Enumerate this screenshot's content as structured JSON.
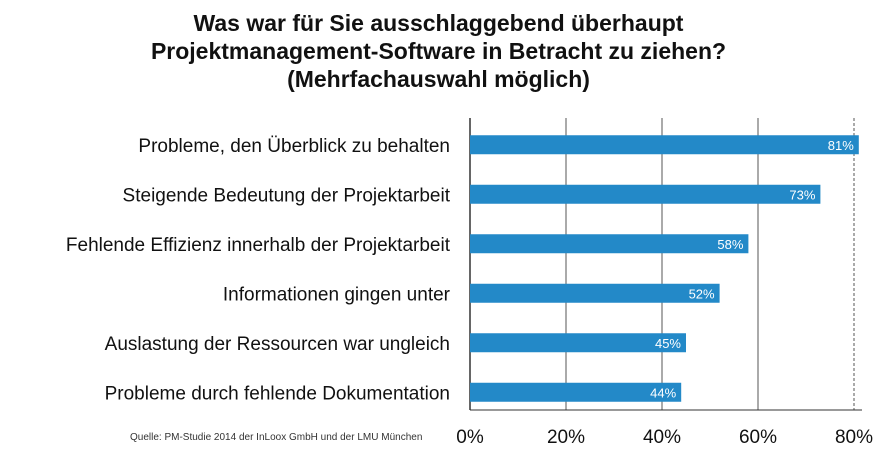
{
  "chart_data": {
    "type": "bar",
    "orientation": "horizontal",
    "title_lines": [
      "Was war für Sie ausschlaggebend überhaupt",
      "Projektmanagement-Software in Betracht zu ziehen?",
      "(Mehrfachauswahl möglich)"
    ],
    "categories": [
      "Probleme, den Überblick zu behalten",
      "Steigende Bedeutung der Projektarbeit",
      "Fehlende Effizienz innerhalb der Projektarbeit",
      "Informationen gingen unter",
      "Auslastung der Ressourcen war ungleich",
      "Probleme durch fehlende Dokumentation"
    ],
    "values": [
      81,
      73,
      58,
      52,
      45,
      44
    ],
    "value_labels": [
      "81%",
      "73%",
      "58%",
      "52%",
      "45%",
      "44%"
    ],
    "xlim": [
      0,
      80
    ],
    "x_ticks": [
      0,
      20,
      40,
      60,
      80
    ],
    "x_tick_labels": [
      "0%",
      "20%",
      "40%",
      "60%",
      "80%"
    ],
    "grid": "vertical",
    "bar_color": "#2389c8",
    "grid_color": "#555555"
  },
  "source": "Quelle: PM-Studie 2014 der InLoox GmbH und der LMU München"
}
